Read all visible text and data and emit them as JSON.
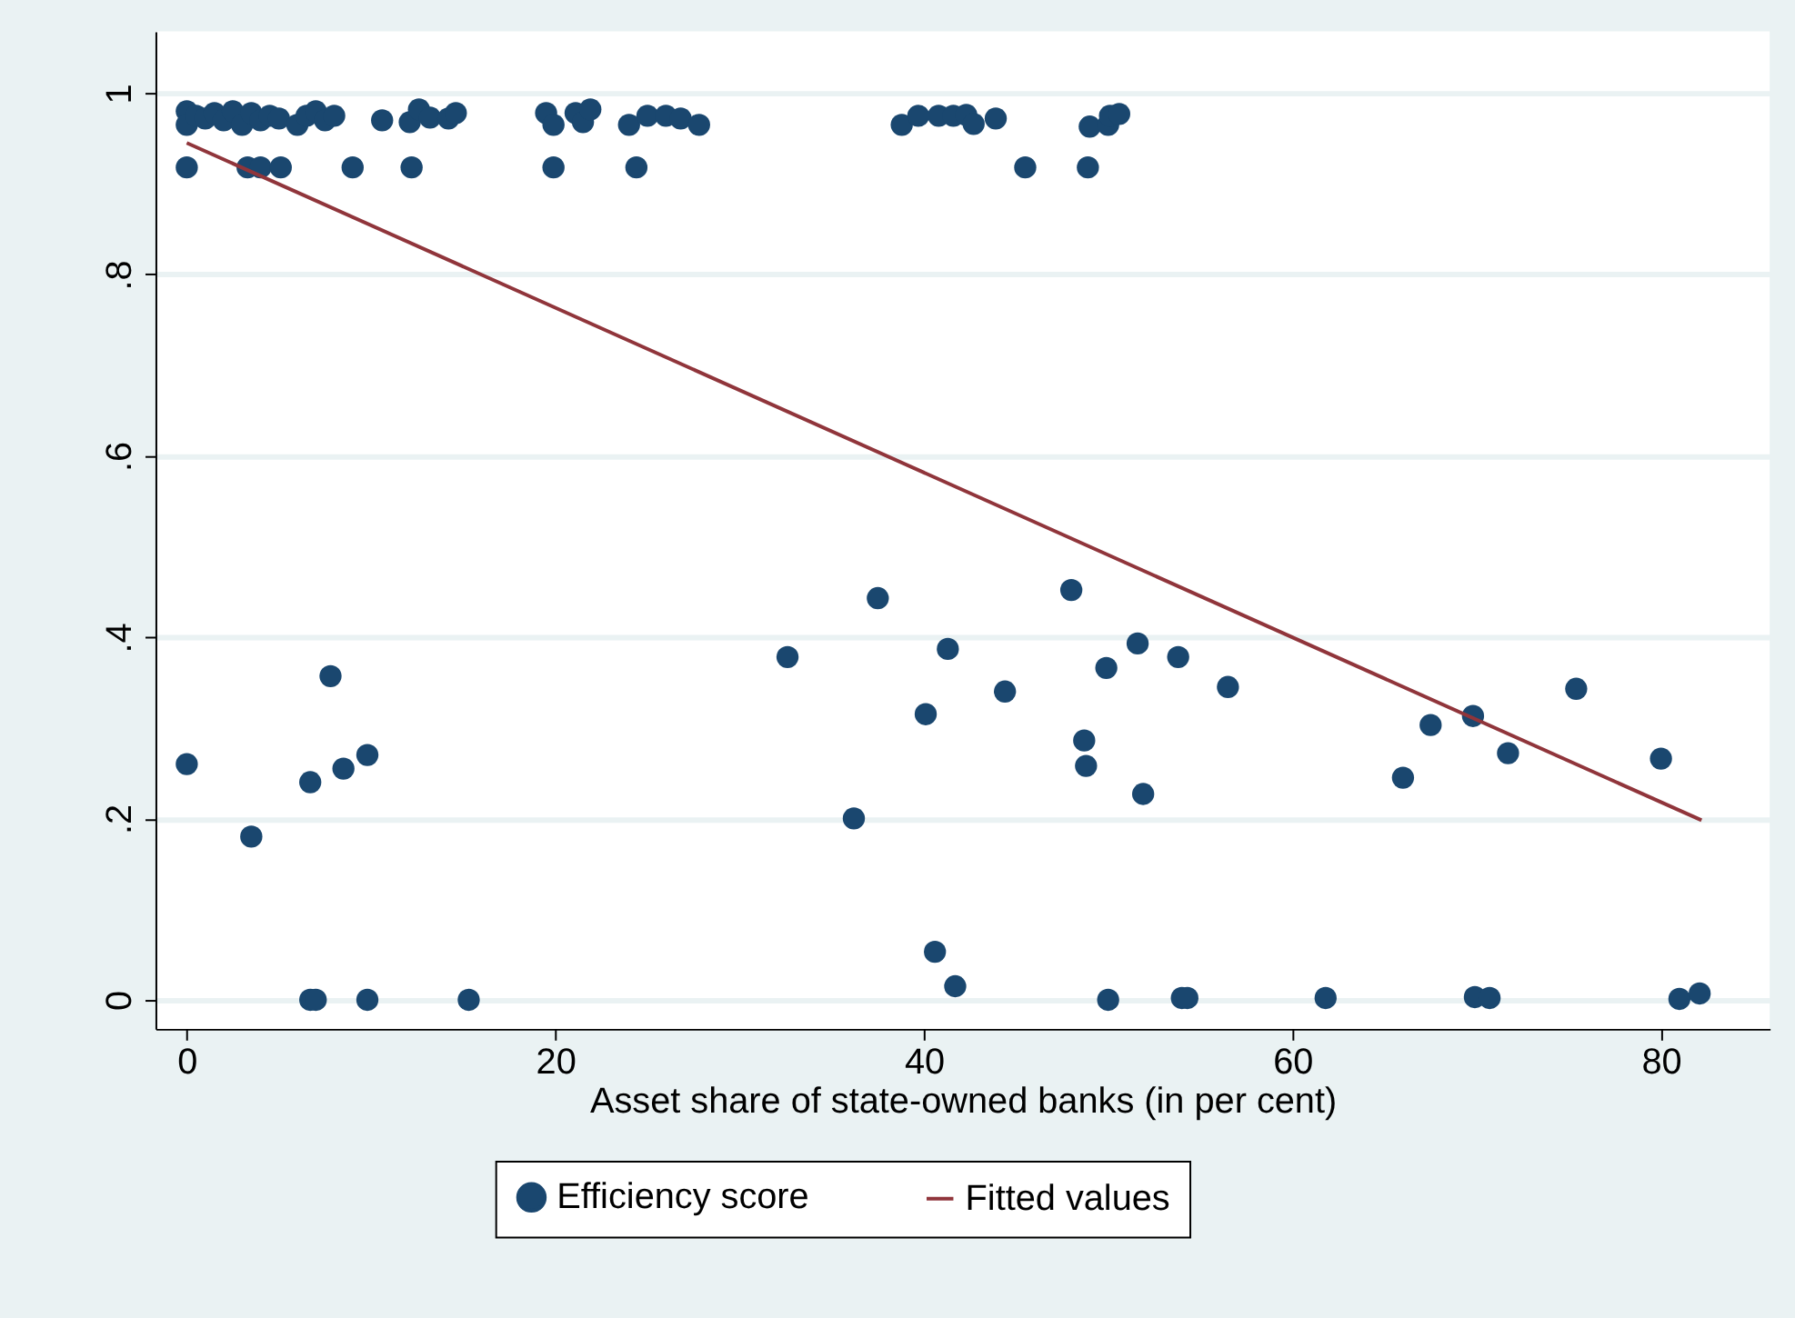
{
  "chart_data": {
    "type": "scatter",
    "xlabel": "Asset share of state-owned banks (in per cent)",
    "xlim": [
      -1.7,
      85.9
    ],
    "xticks": [
      0,
      20,
      40,
      60,
      80
    ],
    "ylim": [
      -0.032,
      1.068
    ],
    "yticks": [
      {
        "value": 0,
        "label": "0"
      },
      {
        "value": 0.2,
        "label": ".2"
      },
      {
        "value": 0.4,
        "label": ".4"
      },
      {
        "value": 0.6,
        "label": ".6"
      },
      {
        "value": 0.8,
        "label": ".8"
      },
      {
        "value": 1,
        "label": "1"
      }
    ],
    "grid": "y",
    "legend": "bottom",
    "series": [
      {
        "name": "Efficiency score",
        "marker": "circle",
        "color": "#1a476f",
        "x": [
          0,
          3.5,
          6.7,
          7.8,
          8.5,
          9.8,
          6.7,
          7.0,
          9.8,
          15.3,
          32.6,
          36.2,
          37.5,
          40.1,
          40.6,
          41.3,
          41.7,
          44.4,
          48.0,
          48.7,
          48.8,
          49.9,
          50.0,
          51.6,
          51.9,
          53.8,
          54.0,
          54.3,
          56.5,
          61.8,
          66.0,
          67.5,
          69.8,
          69.9,
          70.7,
          71.7,
          75.4,
          80.0,
          81.0,
          82.1,
          0,
          3.3,
          4.0,
          5.1,
          9.0,
          12.2,
          19.9,
          24.4,
          45.5,
          48.9,
          0,
          0,
          0.5,
          1.0,
          1.5,
          2.0,
          2.5,
          3.0,
          3.5,
          4.0,
          4.5,
          5.0,
          6.0,
          6.5,
          7.0,
          7.5,
          8.0,
          10.6,
          12.1,
          12.6,
          13.2,
          14.2,
          14.6,
          19.5,
          19.9,
          21.1,
          21.5,
          21.9,
          24.0,
          25.0,
          26.0,
          26.8,
          27.8,
          38.8,
          39.7,
          40.8,
          41.6,
          42.3,
          42.7,
          43.9,
          49.0,
          50.0,
          50.1,
          50.6
        ],
        "values": [
          0.26,
          0.18,
          0.24,
          0.357,
          0.255,
          0.27,
          0,
          0,
          0,
          0,
          0.378,
          0.2,
          0.443,
          0.315,
          0.053,
          0.387,
          0.015,
          0.34,
          0.452,
          0.286,
          0.258,
          0.366,
          0,
          0.393,
          0.227,
          0.378,
          0.002,
          0.002,
          0.345,
          0.002,
          0.245,
          0.303,
          0.313,
          0.003,
          0.002,
          0.272,
          0.343,
          0.266,
          0.001,
          0.007,
          0.918,
          0.918,
          0.918,
          0.918,
          0.918,
          0.918,
          0.918,
          0.918,
          0.918,
          0.918,
          0.98,
          0.965,
          0.975,
          0.972,
          0.978,
          0.97,
          0.98,
          0.965,
          0.978,
          0.97,
          0.975,
          0.972,
          0.965,
          0.975,
          0.98,
          0.97,
          0.975,
          0.97,
          0.968,
          0.982,
          0.973,
          0.972,
          0.978,
          0.978,
          0.965,
          0.978,
          0.968,
          0.982,
          0.965,
          0.975,
          0.975,
          0.972,
          0.965,
          0.965,
          0.975,
          0.975,
          0.975,
          0.976,
          0.966,
          0.972,
          0.963,
          0.965,
          0.975,
          0.977
        ]
      },
      {
        "name": "Fitted values",
        "type": "line",
        "color": "#90353b",
        "x": [
          0,
          82.2
        ],
        "values": [
          0.945,
          0.198
        ]
      }
    ]
  }
}
